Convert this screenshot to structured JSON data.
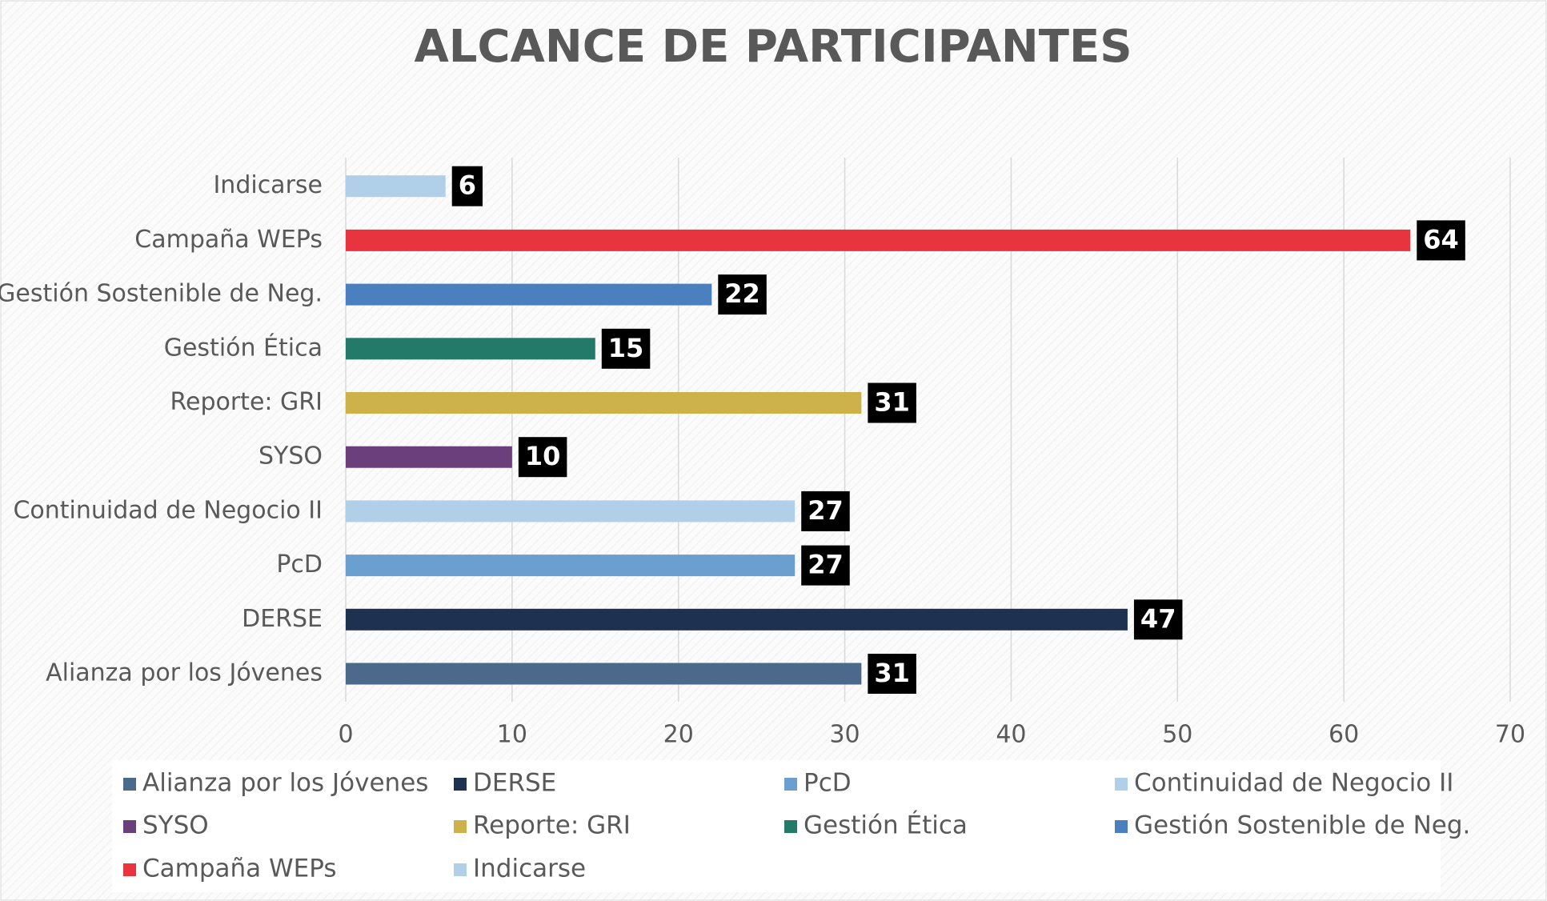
{
  "chart_data": {
    "type": "bar",
    "orientation": "horizontal",
    "title": "ALCANCE DE PARTICIPANTES",
    "categories": [
      "Alianza por los Jóvenes",
      "DERSE",
      "PcD",
      "Continuidad de Negocio II",
      "SYSO",
      "Reporte: GRI",
      "Gestión Ética",
      "Gestión Sostenible de Neg.",
      "Campaña WEPs",
      "Indicarse"
    ],
    "values": [
      31,
      47,
      27,
      27,
      10,
      31,
      15,
      22,
      64,
      6
    ],
    "colors": [
      "#4b6a8b",
      "#1f3150",
      "#6a9fcf",
      "#b0cfe8",
      "#6b3e7c",
      "#cdb14b",
      "#247a69",
      "#4a7fc0",
      "#e8343f",
      "#b0cfe8"
    ],
    "xlim": [
      0,
      70
    ],
    "xticks": [
      0,
      10,
      20,
      30,
      40,
      50,
      60,
      70
    ],
    "grid": true,
    "legend": "bottom"
  }
}
